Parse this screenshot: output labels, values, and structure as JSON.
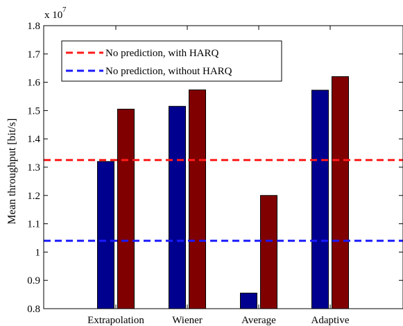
{
  "chart_data": {
    "type": "bar",
    "categories": [
      "Extrapolation",
      "Wiener",
      "Average",
      "Adaptive"
    ],
    "series": [
      {
        "values": [
          1.32,
          1.515,
          0.855,
          1.572
        ],
        "color": "#00008f"
      },
      {
        "values": [
          1.505,
          1.573,
          1.2,
          1.62
        ],
        "color": "#800000"
      }
    ],
    "reference_lines": [
      {
        "name": "No prediction, with HARQ",
        "value": 1.325,
        "color": "#ff1a1a",
        "style": "dashed"
      },
      {
        "name": "No prediction, without HARQ",
        "value": 1.04,
        "color": "#1a1aff",
        "style": "dashed"
      }
    ],
    "title": "",
    "xlabel": "",
    "ylabel": "Mean throughput [bit/s]",
    "ylim": [
      0.8,
      1.8
    ],
    "yticks": [
      "0.8",
      "0.9",
      "1",
      "1.1",
      "1.2",
      "1.3",
      "1.4",
      "1.5",
      "1.6",
      "1.7",
      "1.8"
    ],
    "y_multiplier_base": "x 10",
    "y_multiplier_exponent": "7",
    "grid": false,
    "legend_position": "top-left"
  }
}
